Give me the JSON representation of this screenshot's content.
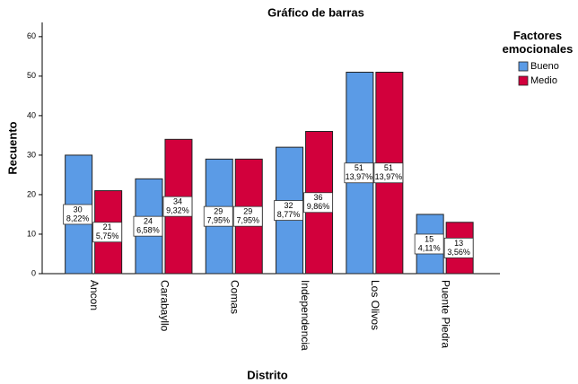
{
  "chart_data": {
    "type": "bar",
    "title": "Gráfico de barras",
    "x_label": "Distrito",
    "y_label": "Recuento",
    "legend_title": "Factores emocionales",
    "legend_position": "right",
    "categories": [
      "Ancon",
      "Carabayllo",
      "Comas",
      "Independencia",
      "Los Olivos",
      "Puente Piedra"
    ],
    "series": [
      {
        "name": "Bueno",
        "color": "#5b9be6",
        "values": [
          30,
          24,
          29,
          32,
          51,
          15
        ],
        "percent_labels": [
          "8,22%",
          "6,58%",
          "7,95%",
          "8,77%",
          "13,97%",
          "4,11%"
        ]
      },
      {
        "name": "Medio",
        "color": "#d2003c",
        "values": [
          21,
          34,
          29,
          36,
          51,
          13
        ],
        "percent_labels": [
          "5,75%",
          "9,32%",
          "7,95%",
          "9,86%",
          "13,97%",
          "3,56%"
        ]
      }
    ],
    "ylim": [
      0,
      63.6
    ],
    "yticks": [
      0,
      10,
      20,
      30,
      40,
      50,
      60
    ],
    "grid": false
  }
}
